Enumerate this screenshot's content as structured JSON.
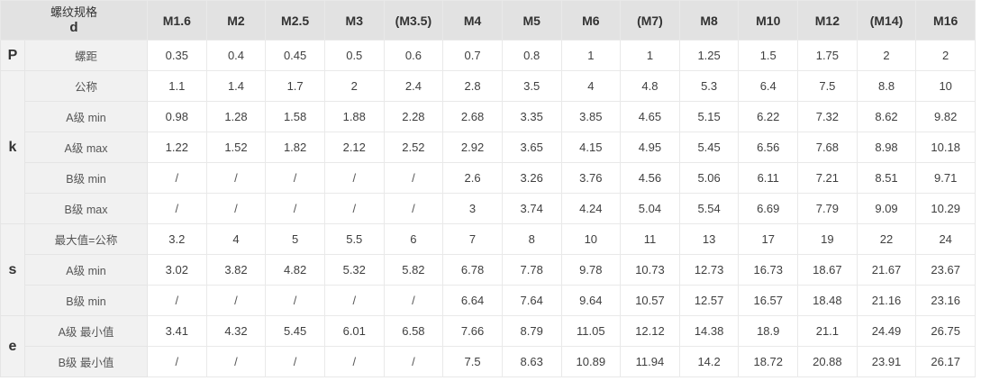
{
  "table": {
    "corner": {
      "line1": "螺纹规格",
      "line2": "d"
    },
    "columns": [
      "M1.6",
      "M2",
      "M2.5",
      "M3",
      "(M3.5)",
      "M4",
      "M5",
      "M6",
      "(M7)",
      "M8",
      "M10",
      "M12",
      "(M14)",
      "M16"
    ],
    "groups": [
      {
        "label": "P",
        "rows": [
          {
            "label": "螺距",
            "values": [
              "0.35",
              "0.4",
              "0.45",
              "0.5",
              "0.6",
              "0.7",
              "0.8",
              "1",
              "1",
              "1.25",
              "1.5",
              "1.75",
              "2",
              "2"
            ]
          }
        ]
      },
      {
        "label": "k",
        "rows": [
          {
            "label": "公称",
            "values": [
              "1.1",
              "1.4",
              "1.7",
              "2",
              "2.4",
              "2.8",
              "3.5",
              "4",
              "4.8",
              "5.3",
              "6.4",
              "7.5",
              "8.8",
              "10"
            ]
          },
          {
            "label": "A级 min",
            "values": [
              "0.98",
              "1.28",
              "1.58",
              "1.88",
              "2.28",
              "2.68",
              "3.35",
              "3.85",
              "4.65",
              "5.15",
              "6.22",
              "7.32",
              "8.62",
              "9.82"
            ]
          },
          {
            "label": "A级 max",
            "values": [
              "1.22",
              "1.52",
              "1.82",
              "2.12",
              "2.52",
              "2.92",
              "3.65",
              "4.15",
              "4.95",
              "5.45",
              "6.56",
              "7.68",
              "8.98",
              "10.18"
            ]
          },
          {
            "label": "B级 min",
            "values": [
              "/",
              "/",
              "/",
              "/",
              "/",
              "2.6",
              "3.26",
              "3.76",
              "4.56",
              "5.06",
              "6.11",
              "7.21",
              "8.51",
              "9.71"
            ]
          },
          {
            "label": "B级 max",
            "values": [
              "/",
              "/",
              "/",
              "/",
              "/",
              "3",
              "3.74",
              "4.24",
              "5.04",
              "5.54",
              "6.69",
              "7.79",
              "9.09",
              "10.29"
            ]
          }
        ]
      },
      {
        "label": "s",
        "rows": [
          {
            "label": "最大值=公称",
            "values": [
              "3.2",
              "4",
              "5",
              "5.5",
              "6",
              "7",
              "8",
              "10",
              "11",
              "13",
              "17",
              "19",
              "22",
              "24"
            ]
          },
          {
            "label": "A级 min",
            "values": [
              "3.02",
              "3.82",
              "4.82",
              "5.32",
              "5.82",
              "6.78",
              "7.78",
              "9.78",
              "10.73",
              "12.73",
              "16.73",
              "18.67",
              "21.67",
              "23.67"
            ]
          },
          {
            "label": "B级 min",
            "values": [
              "/",
              "/",
              "/",
              "/",
              "/",
              "6.64",
              "7.64",
              "9.64",
              "10.57",
              "12.57",
              "16.57",
              "18.48",
              "21.16",
              "23.16"
            ]
          }
        ]
      },
      {
        "label": "e",
        "rows": [
          {
            "label": "A级 最小值",
            "values": [
              "3.41",
              "4.32",
              "5.45",
              "6.01",
              "6.58",
              "7.66",
              "8.79",
              "11.05",
              "12.12",
              "14.38",
              "18.9",
              "21.1",
              "24.49",
              "26.75"
            ]
          },
          {
            "label": "B级 最小值",
            "values": [
              "/",
              "/",
              "/",
              "/",
              "/",
              "7.5",
              "8.63",
              "10.89",
              "11.94",
              "14.2",
              "18.72",
              "20.88",
              "23.91",
              "26.17"
            ]
          }
        ]
      }
    ]
  },
  "colors": {
    "header_bg": "#e2e2e2",
    "label_bg": "#f1f1f1",
    "cell_bg": "#ffffff",
    "border": "#e9e9e9",
    "text": "#3f3f3f"
  }
}
